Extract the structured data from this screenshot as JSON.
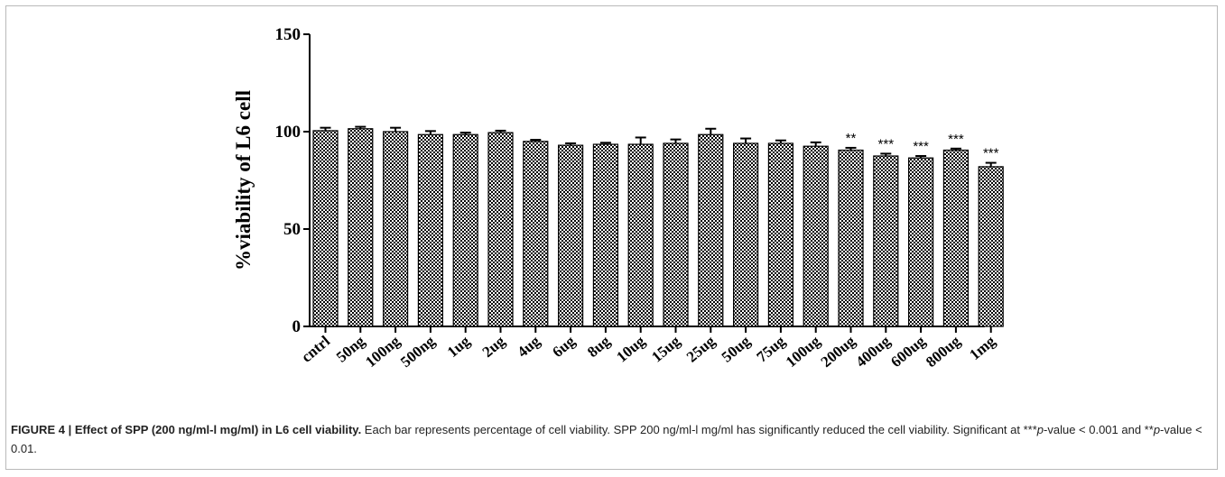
{
  "chart_data": {
    "type": "bar",
    "title": "",
    "xlabel": "",
    "ylabel": "%viability of L6 cell",
    "ylim": [
      0,
      150
    ],
    "yticks": [
      0,
      50,
      100,
      150
    ],
    "grid": false,
    "categories": [
      "cntrl",
      "50ng",
      "100ng",
      "500ng",
      "1ug",
      "2ug",
      "4ug",
      "6ug",
      "8ug",
      "10ug",
      "15ug",
      "25ug",
      "50ug",
      "75ug",
      "100ug",
      "200ug",
      "400ug",
      "600ug",
      "800ug",
      "1mg"
    ],
    "values": [
      100.5,
      101.5,
      100.0,
      98.5,
      98.5,
      99.5,
      95.0,
      93.0,
      93.5,
      93.5,
      94.0,
      98.5,
      94.0,
      94.0,
      92.5,
      90.5,
      87.5,
      86.5,
      90.5,
      82.0
    ],
    "errors": [
      1.5,
      1.0,
      2.0,
      1.8,
      1.0,
      1.0,
      0.8,
      1.0,
      0.8,
      3.5,
      2.0,
      3.0,
      2.5,
      1.5,
      2.0,
      1.2,
      1.2,
      1.0,
      0.8,
      2.0
    ],
    "annotations": [
      "",
      "",
      "",
      "",
      "",
      "",
      "",
      "",
      "",
      "",
      "",
      "",
      "",
      "",
      "",
      "**",
      "***",
      "***",
      "***",
      "***"
    ],
    "bar_fill": "checkerboard",
    "bar_colors": [
      "#000000",
      "#ffffff"
    ]
  },
  "caption": {
    "figure_label": "FIGURE 4 | Effect of SPP (200 ng/ml-l mg/ml) in L6 cell viability.",
    "text_part1": " Each bar represents percentage of cell viability. SPP 200 ng/ml-l mg/ml has significantly reduced the cell viability. Significant at ***",
    "p1": "p",
    "text_part2": "-value < 0.001 and **",
    "p2": "p",
    "text_part3": "-value < 0.01."
  }
}
